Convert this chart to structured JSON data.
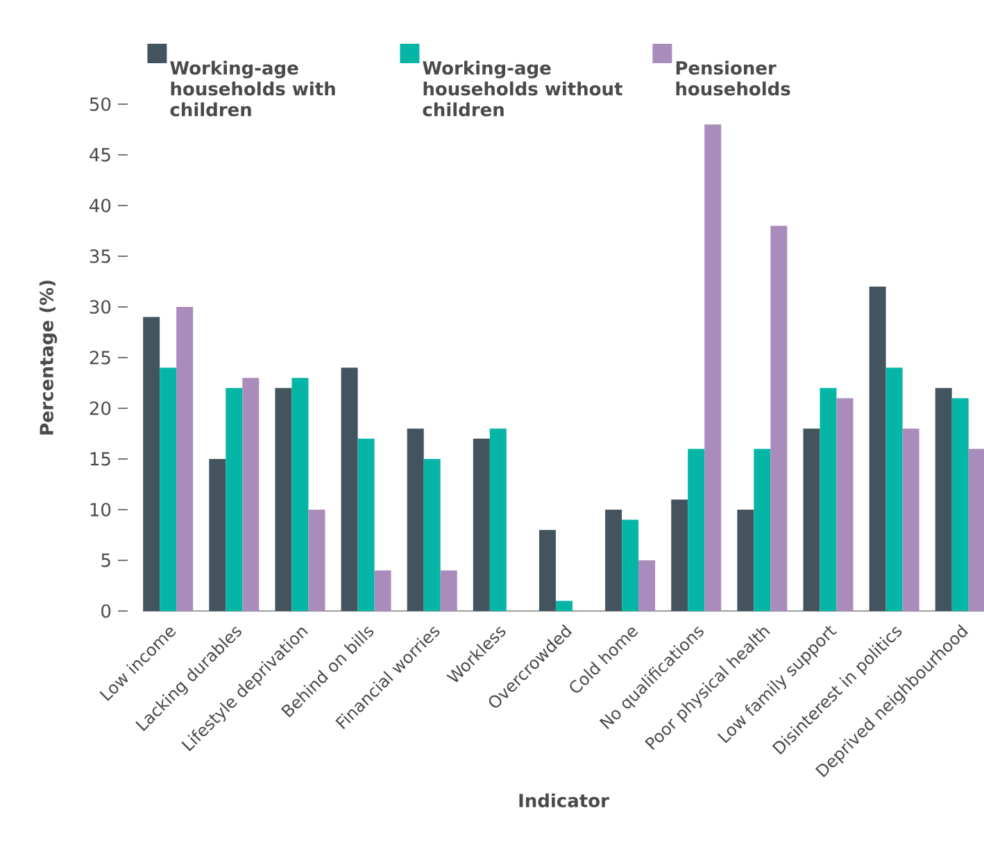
{
  "chart_data": {
    "type": "bar",
    "xlabel": "Indicator",
    "ylabel": "Percentage (%)",
    "categories": [
      "Low income",
      "Lacking durables",
      "Lifestyle deprivation",
      "Behind on bills",
      "Financial worries",
      "Workless",
      "Overcrowded",
      "Cold home",
      "No qualifications",
      "Poor physical health",
      "Low family support",
      "Disinterest in politics",
      "Deprived neighbourhood"
    ],
    "series": [
      {
        "name": "Working-age households with children",
        "color": "#44545e",
        "values": [
          29,
          15,
          22,
          24,
          18,
          17,
          8,
          10,
          11,
          10,
          18,
          32,
          22
        ]
      },
      {
        "name": "Working-age households without children",
        "color": "#05b5a5",
        "values": [
          24,
          22,
          23,
          17,
          15,
          18,
          1,
          9,
          16,
          16,
          22,
          24,
          21
        ]
      },
      {
        "name": "Pensioner households",
        "color": "#a98cbb",
        "values": [
          30,
          23,
          10,
          4,
          4,
          null,
          null,
          5,
          48,
          38,
          21,
          18,
          16
        ]
      }
    ],
    "ylim": [
      0,
      50
    ],
    "yticks": [
      0,
      5,
      10,
      15,
      20,
      25,
      30,
      35,
      40,
      45,
      50
    ],
    "grid": false,
    "legend": "top"
  }
}
